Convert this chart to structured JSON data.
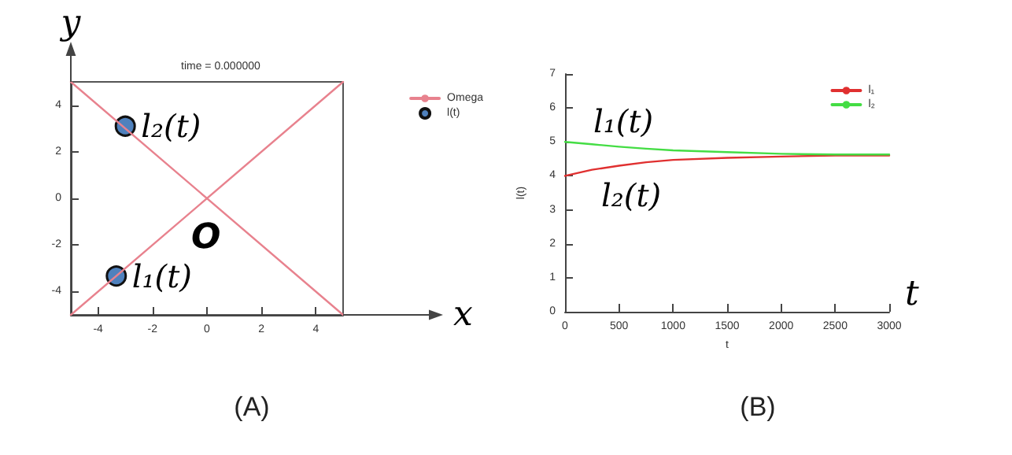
{
  "chart_data": [
    {
      "type": "line",
      "title": "time = 0.000000",
      "xlabel": "x",
      "ylabel": "y",
      "xlim": [
        -5,
        5
      ],
      "ylim": [
        -5,
        5
      ],
      "xticks": [
        -4,
        -2,
        0,
        2,
        4
      ],
      "yticks": [
        -4,
        -2,
        0,
        2,
        4
      ],
      "grid": false,
      "legend": "top right",
      "series": [
        {
          "name": "Omega",
          "color": "#e8828e",
          "marker": "none",
          "x": [
            -5,
            5
          ],
          "values": [
            -5,
            5
          ]
        },
        {
          "color": "#e8828e",
          "marker": "none",
          "x": [
            -5,
            5
          ],
          "values": [
            5,
            -5
          ]
        },
        {
          "name": "l(t)",
          "type": "scatter",
          "color": "#4f81bd",
          "marker": "circle",
          "x": [
            -3.33,
            -3
          ],
          "values": [
            -3.33,
            3.1
          ]
        }
      ],
      "annotations": [
        {
          "text": "l₂(t)",
          "x": -3,
          "y": 3.1
        },
        {
          "text": "l₁(t)",
          "x": -3.33,
          "y": -3.33
        },
        {
          "text": "O",
          "x": 0,
          "y": 0
        },
        "(A)"
      ]
    },
    {
      "type": "line",
      "xlabel": "t",
      "ylabel": "l(t)",
      "xlim": [
        0,
        3000
      ],
      "ylim": [
        0,
        7
      ],
      "xticks": [
        0,
        500,
        1000,
        1500,
        2000,
        2500,
        3000
      ],
      "yticks": [
        0,
        1,
        2,
        3,
        4,
        5,
        6,
        7
      ],
      "grid": false,
      "legend": "top right",
      "marker": "none",
      "x": [
        0,
        250,
        500,
        750,
        1000,
        1500,
        2000,
        2500,
        3000
      ],
      "series": [
        {
          "name": "l₁",
          "color": "#e03030",
          "values": [
            4.0,
            4.18,
            4.3,
            4.4,
            4.47,
            4.53,
            4.57,
            4.6,
            4.6
          ]
        },
        {
          "name": "l₂",
          "color": "#44dd44",
          "values": [
            5.0,
            4.93,
            4.86,
            4.8,
            4.75,
            4.7,
            4.65,
            4.63,
            4.63
          ]
        }
      ],
      "annotations": [
        "l₁(t)",
        "l₂(t)",
        "t",
        "(B)"
      ]
    }
  ]
}
